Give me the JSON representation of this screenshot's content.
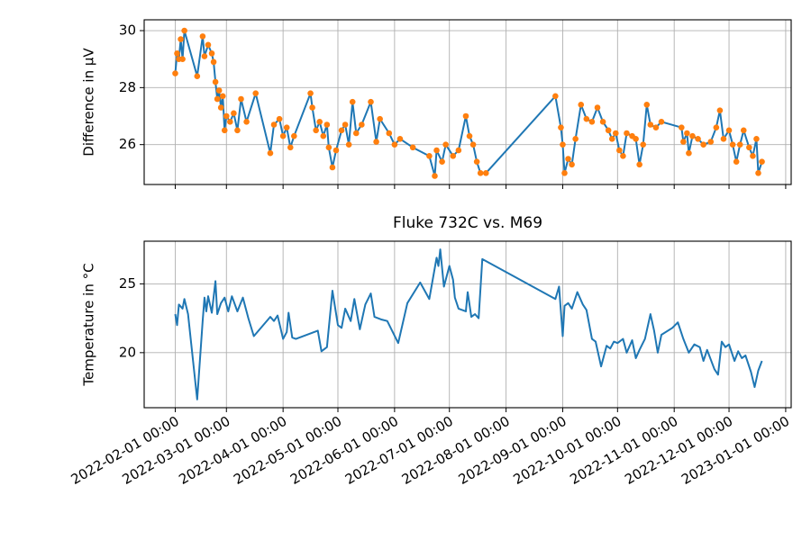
{
  "chart_data": [
    {
      "type": "line",
      "ylabel": "Difference in µV",
      "x": [
        "2022-02-01",
        "2022-02-02",
        "2022-02-03",
        "2022-02-04",
        "2022-02-05",
        "2022-02-06",
        "2022-02-13",
        "2022-02-16",
        "2022-02-17",
        "2022-02-19",
        "2022-02-21",
        "2022-02-22",
        "2022-02-23",
        "2022-02-24",
        "2022-02-25",
        "2022-02-26",
        "2022-02-27",
        "2022-02-28",
        "2022-03-01",
        "2022-03-03",
        "2022-03-05",
        "2022-03-07",
        "2022-03-09",
        "2022-03-12",
        "2022-03-17",
        "2022-03-25",
        "2022-03-27",
        "2022-03-30",
        "2022-04-01",
        "2022-04-03",
        "2022-04-05",
        "2022-04-07",
        "2022-04-16",
        "2022-04-17",
        "2022-04-19",
        "2022-04-21",
        "2022-04-23",
        "2022-04-25",
        "2022-04-26",
        "2022-04-28",
        "2022-04-30",
        "2022-05-03",
        "2022-05-05",
        "2022-05-07",
        "2022-05-09",
        "2022-05-11",
        "2022-05-14",
        "2022-05-19",
        "2022-05-22",
        "2022-05-24",
        "2022-05-29",
        "2022-06-01",
        "2022-06-04",
        "2022-06-11",
        "2022-06-20",
        "2022-06-23",
        "2022-06-24",
        "2022-06-27",
        "2022-06-29",
        "2022-07-03",
        "2022-07-06",
        "2022-07-10",
        "2022-07-12",
        "2022-07-14",
        "2022-07-16",
        "2022-07-18",
        "2022-07-21",
        "2022-08-28",
        "2022-08-31",
        "2022-09-01",
        "2022-09-02",
        "2022-09-04",
        "2022-09-06",
        "2022-09-08",
        "2022-09-11",
        "2022-09-14",
        "2022-09-17",
        "2022-09-20",
        "2022-09-23",
        "2022-09-26",
        "2022-09-28",
        "2022-09-30",
        "2022-10-02",
        "2022-10-04",
        "2022-10-06",
        "2022-10-09",
        "2022-10-11",
        "2022-10-13",
        "2022-10-15",
        "2022-10-17",
        "2022-10-19",
        "2022-10-22",
        "2022-10-25",
        "2022-11-05",
        "2022-11-06",
        "2022-11-08",
        "2022-11-09",
        "2022-11-11",
        "2022-11-14",
        "2022-11-17",
        "2022-11-21",
        "2022-11-24",
        "2022-11-26",
        "2022-11-28",
        "2022-12-01",
        "2022-12-03",
        "2022-12-05",
        "2022-12-07",
        "2022-12-09",
        "2022-12-12",
        "2022-12-14",
        "2022-12-16",
        "2022-12-17",
        "2022-12-19"
      ],
      "series": [
        {
          "color": "#1f77b4",
          "marker_color": "#ff7f0e",
          "values": [
            28.5,
            29.2,
            29.0,
            29.7,
            29.0,
            30.0,
            28.4,
            29.8,
            29.1,
            29.5,
            29.2,
            28.9,
            28.2,
            27.6,
            27.9,
            27.3,
            27.7,
            26.5,
            27.0,
            26.8,
            27.1,
            26.5,
            27.6,
            26.8,
            27.8,
            25.7,
            26.7,
            26.9,
            26.3,
            26.6,
            25.9,
            26.3,
            27.8,
            27.3,
            26.5,
            26.8,
            26.3,
            26.7,
            25.9,
            25.2,
            25.8,
            26.5,
            26.7,
            26.0,
            27.5,
            26.4,
            26.7,
            27.5,
            26.1,
            26.9,
            26.4,
            26.0,
            26.2,
            25.9,
            25.6,
            24.9,
            25.8,
            25.4,
            26.0,
            25.6,
            25.8,
            27.0,
            26.3,
            26.0,
            25.4,
            25.0,
            25.0,
            27.7,
            26.6,
            26.0,
            25.0,
            25.5,
            25.3,
            26.2,
            27.4,
            26.9,
            26.8,
            27.3,
            26.8,
            26.5,
            26.2,
            26.4,
            25.8,
            25.6,
            26.4,
            26.3,
            26.2,
            25.3,
            26.0,
            27.4,
            26.7,
            26.6,
            26.8,
            26.6,
            26.1,
            26.4,
            25.7,
            26.3,
            26.2,
            26.0,
            26.1,
            26.6,
            27.2,
            26.2,
            26.5,
            26.0,
            25.4,
            26.0,
            26.5,
            25.9,
            25.6,
            26.2,
            25.0,
            25.4
          ]
        }
      ],
      "xlim": [
        "2022-01-15",
        "2023-01-04"
      ],
      "xticks": [
        "2022-02-01",
        "2022-03-01",
        "2022-04-01",
        "2022-05-01",
        "2022-06-01",
        "2022-07-01",
        "2022-08-01",
        "2022-09-01",
        "2022-10-01",
        "2022-11-01",
        "2022-12-01",
        "2023-01-01"
      ],
      "ylim": [
        24.6,
        30.38
      ],
      "yticks": [
        26,
        28,
        30
      ],
      "grid": true
    },
    {
      "type": "line",
      "title": "Fluke 732C vs. M69",
      "ylabel": "Temperature in °C",
      "x": [
        "2022-02-01",
        "2022-02-02",
        "2022-02-03",
        "2022-02-05",
        "2022-02-06",
        "2022-02-08",
        "2022-02-13",
        "2022-02-16",
        "2022-02-17",
        "2022-02-18",
        "2022-02-19",
        "2022-02-21",
        "2022-02-23",
        "2022-02-24",
        "2022-02-26",
        "2022-02-28",
        "2022-03-02",
        "2022-03-04",
        "2022-03-07",
        "2022-03-10",
        "2022-03-13",
        "2022-03-16",
        "2022-03-25",
        "2022-03-27",
        "2022-03-29",
        "2022-04-01",
        "2022-04-03",
        "2022-04-04",
        "2022-04-06",
        "2022-04-08",
        "2022-04-20",
        "2022-04-22",
        "2022-04-25",
        "2022-04-28",
        "2022-05-01",
        "2022-05-03",
        "2022-05-05",
        "2022-05-08",
        "2022-05-10",
        "2022-05-13",
        "2022-05-16",
        "2022-05-19",
        "2022-05-21",
        "2022-05-25",
        "2022-05-28",
        "2022-06-03",
        "2022-06-08",
        "2022-06-15",
        "2022-06-20",
        "2022-06-24",
        "2022-06-25",
        "2022-06-26",
        "2022-06-28",
        "2022-07-01",
        "2022-07-03",
        "2022-07-04",
        "2022-07-06",
        "2022-07-10",
        "2022-07-11",
        "2022-07-13",
        "2022-07-15",
        "2022-07-17",
        "2022-07-19",
        "2022-08-28",
        "2022-08-30",
        "2022-09-01",
        "2022-09-02",
        "2022-09-04",
        "2022-09-06",
        "2022-09-09",
        "2022-09-12",
        "2022-09-14",
        "2022-09-17",
        "2022-09-19",
        "2022-09-22",
        "2022-09-25",
        "2022-09-27",
        "2022-09-29",
        "2022-10-01",
        "2022-10-04",
        "2022-10-06",
        "2022-10-09",
        "2022-10-11",
        "2022-10-13",
        "2022-10-16",
        "2022-10-19",
        "2022-10-21",
        "2022-10-23",
        "2022-10-25",
        "2022-10-31",
        "2022-11-03",
        "2022-11-06",
        "2022-11-09",
        "2022-11-12",
        "2022-11-15",
        "2022-11-17",
        "2022-11-19",
        "2022-11-23",
        "2022-11-25",
        "2022-11-27",
        "2022-11-29",
        "2022-12-01",
        "2022-12-04",
        "2022-12-06",
        "2022-12-08",
        "2022-12-10",
        "2022-12-13",
        "2022-12-15",
        "2022-12-17",
        "2022-12-19"
      ],
      "series": [
        {
          "color": "#1f77b4",
          "values": [
            22.8,
            22.0,
            23.5,
            23.2,
            23.9,
            22.8,
            16.6,
            22.3,
            24.0,
            23.0,
            24.1,
            22.9,
            25.2,
            22.8,
            23.6,
            24.0,
            23.0,
            24.1,
            23.0,
            24.0,
            22.5,
            21.2,
            22.6,
            22.3,
            22.7,
            21.0,
            21.5,
            22.9,
            21.1,
            21.0,
            21.6,
            20.1,
            20.4,
            24.5,
            22.0,
            21.8,
            23.2,
            22.3,
            23.9,
            21.7,
            23.5,
            24.3,
            22.6,
            22.4,
            22.3,
            20.7,
            23.6,
            25.1,
            23.9,
            26.9,
            26.3,
            27.5,
            24.8,
            26.3,
            25.3,
            24.0,
            23.2,
            23.0,
            24.4,
            22.6,
            22.8,
            22.5,
            26.8,
            23.9,
            24.8,
            21.2,
            23.4,
            23.6,
            23.2,
            24.4,
            23.5,
            23.1,
            21.0,
            20.8,
            19.0,
            20.5,
            20.3,
            20.8,
            20.7,
            21.0,
            20.0,
            20.9,
            19.6,
            20.2,
            21.0,
            22.8,
            21.6,
            20.0,
            21.3,
            21.8,
            22.2,
            21.0,
            20.0,
            20.6,
            20.4,
            19.4,
            20.2,
            18.8,
            18.4,
            20.8,
            20.4,
            20.6,
            19.4,
            20.1,
            19.6,
            19.8,
            18.6,
            17.5,
            18.7,
            19.4
          ]
        }
      ],
      "xlim": [
        "2022-01-15",
        "2023-01-04"
      ],
      "xticks": [
        {
          "value": "2022-02-01",
          "label": "2022-02-01 00:00"
        },
        {
          "value": "2022-03-01",
          "label": "2022-03-01 00:00"
        },
        {
          "value": "2022-04-01",
          "label": "2022-04-01 00:00"
        },
        {
          "value": "2022-05-01",
          "label": "2022-05-01 00:00"
        },
        {
          "value": "2022-06-01",
          "label": "2022-06-01 00:00"
        },
        {
          "value": "2022-07-01",
          "label": "2022-07-01 00:00"
        },
        {
          "value": "2022-08-01",
          "label": "2022-08-01 00:00"
        },
        {
          "value": "2022-09-01",
          "label": "2022-09-01 00:00"
        },
        {
          "value": "2022-10-01",
          "label": "2022-10-01 00:00"
        },
        {
          "value": "2022-11-01",
          "label": "2022-11-01 00:00"
        },
        {
          "value": "2022-12-01",
          "label": "2022-12-01 00:00"
        },
        {
          "value": "2023-01-01",
          "label": "2023-01-01 00:00"
        }
      ],
      "ylim": [
        16.0,
        28.1
      ],
      "yticks": [
        20,
        25
      ],
      "grid": true
    }
  ]
}
